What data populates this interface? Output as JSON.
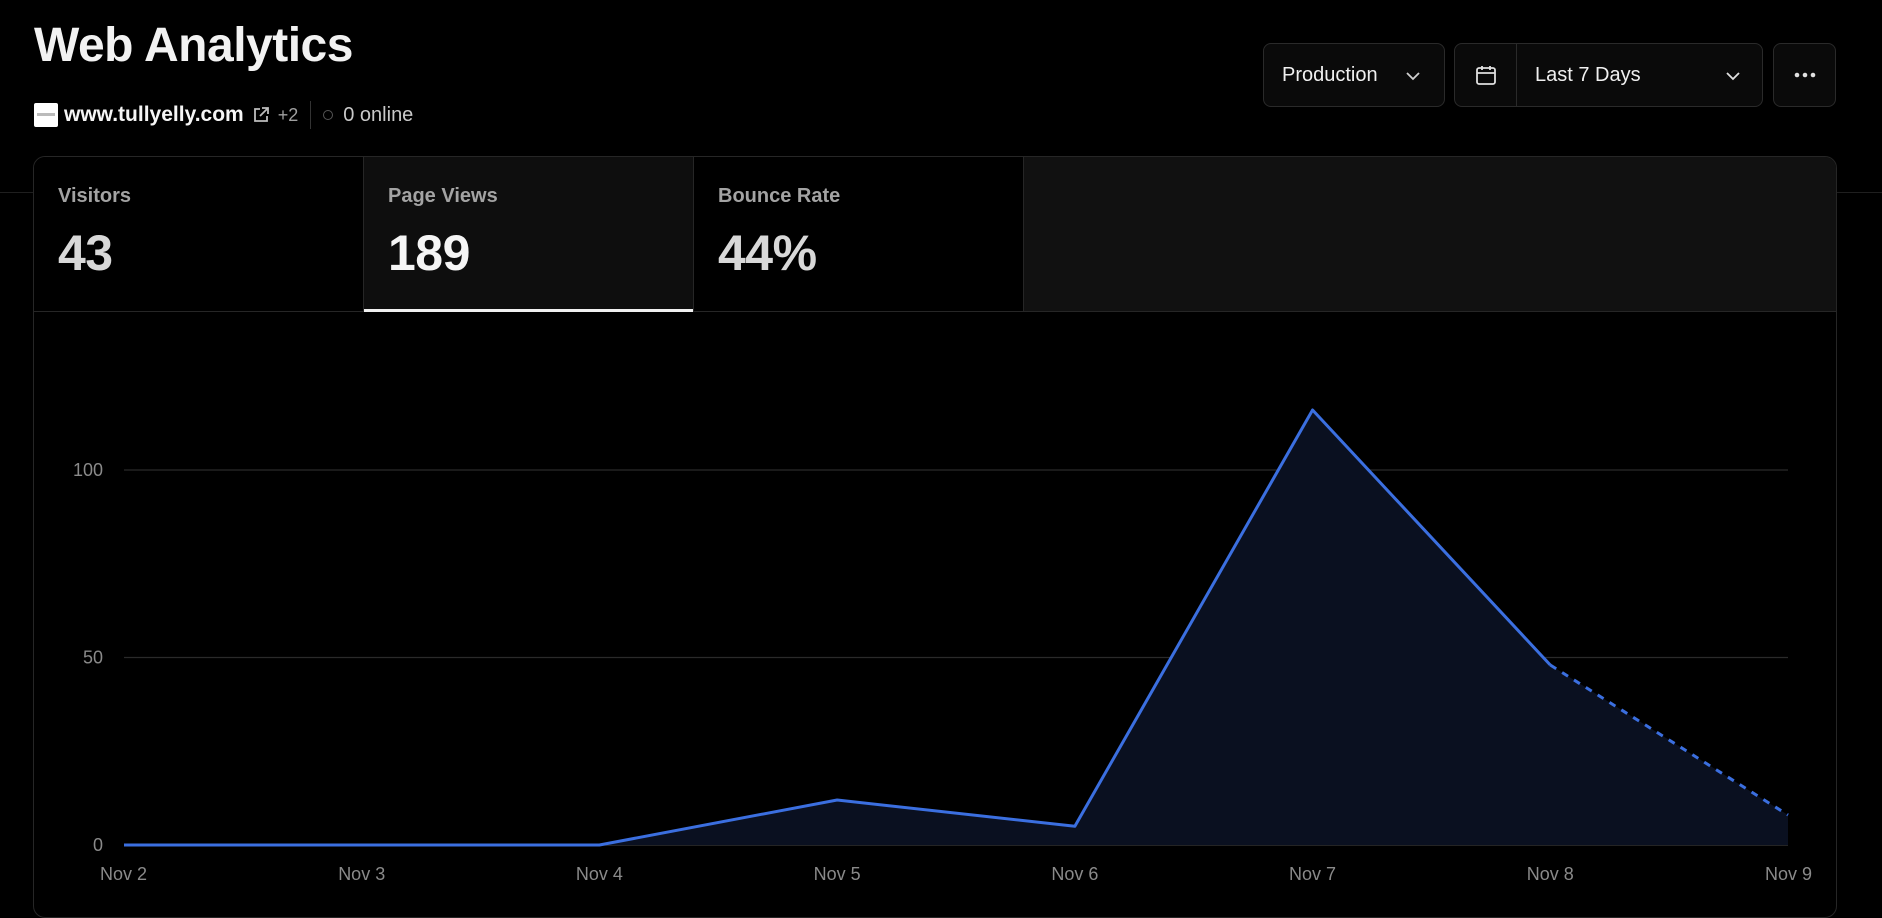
{
  "header": {
    "title": "Web Analytics",
    "domain": "www.tullyelly.com",
    "extra_domains": "+2",
    "online": "0 online"
  },
  "controls": {
    "environment": "Production",
    "date_range": "Last 7 Days"
  },
  "tabs": [
    {
      "label": "Visitors",
      "value": "43",
      "active": false
    },
    {
      "label": "Page Views",
      "value": "189",
      "active": true
    },
    {
      "label": "Bounce Rate",
      "value": "44%",
      "active": false
    }
  ],
  "icons": [
    "favicon-icon",
    "external-link-icon",
    "status-dot-icon",
    "chevron-down-icon",
    "calendar-icon",
    "more-icon"
  ],
  "colors": {
    "line": "#3b6fe0",
    "area": "#0a1020",
    "grid": "#2a2a2a",
    "background": "#000000"
  },
  "chart_data": {
    "type": "area",
    "x": [
      "Nov 2",
      "Nov 3",
      "Nov 4",
      "Nov 5",
      "Nov 6",
      "Nov 7",
      "Nov 8",
      "Nov 9"
    ],
    "series": [
      {
        "values": [
          0,
          0,
          0,
          12,
          5,
          116,
          48,
          8
        ]
      }
    ],
    "projected_from_index": 6,
    "yticks": [
      0,
      50,
      100
    ],
    "ylim": [
      0,
      130
    ],
    "grid": true
  }
}
